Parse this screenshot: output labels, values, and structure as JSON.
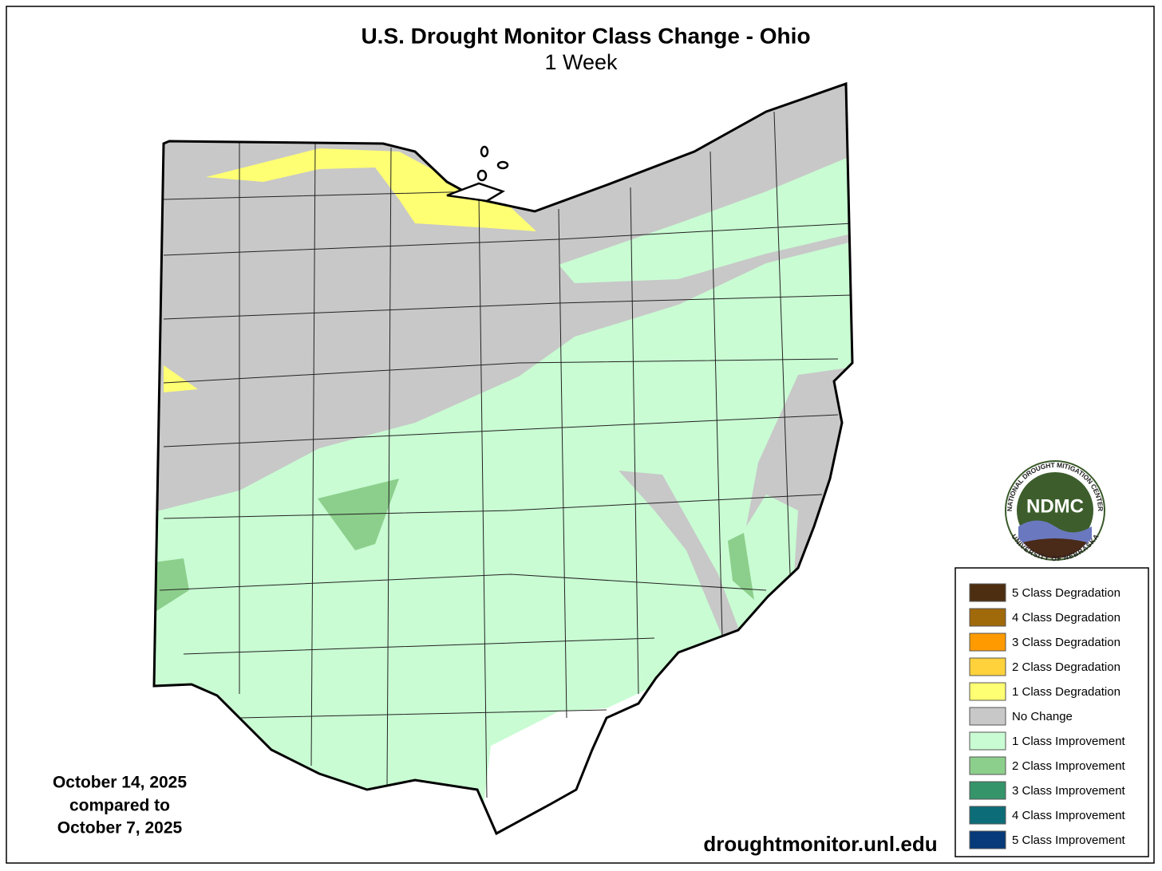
{
  "title": "U.S. Drought Monitor Class Change - Ohio",
  "subtitle": "1 Week",
  "date": {
    "current": "October 14, 2025",
    "connector": "compared to",
    "previous": "October 7, 2025"
  },
  "source": "droughtmonitor.unl.edu",
  "logo": {
    "abbreviation": "NDMC",
    "top_text": "NATIONAL DROUGHT MITIGATION CENTER",
    "bottom_text": "UNIVERSITY OF NEBRASKA"
  },
  "legend": [
    {
      "label": "5 Class Degradation",
      "color": "#4d2e10"
    },
    {
      "label": "4 Class Degradation",
      "color": "#a0690a"
    },
    {
      "label": "3 Class Degradation",
      "color": "#ff9a00"
    },
    {
      "label": "2 Class Degradation",
      "color": "#ffd23c"
    },
    {
      "label": "1 Class Degradation",
      "color": "#ffff73"
    },
    {
      "label": "No Change",
      "color": "#c8c8c8"
    },
    {
      "label": "1 Class Improvement",
      "color": "#c9fcd3"
    },
    {
      "label": "2 Class Improvement",
      "color": "#8ccf8c"
    },
    {
      "label": "3 Class Improvement",
      "color": "#35946a"
    },
    {
      "label": "4 Class Improvement",
      "color": "#0c6d78"
    },
    {
      "label": "5 Class Improvement",
      "color": "#063a7a"
    }
  ]
}
